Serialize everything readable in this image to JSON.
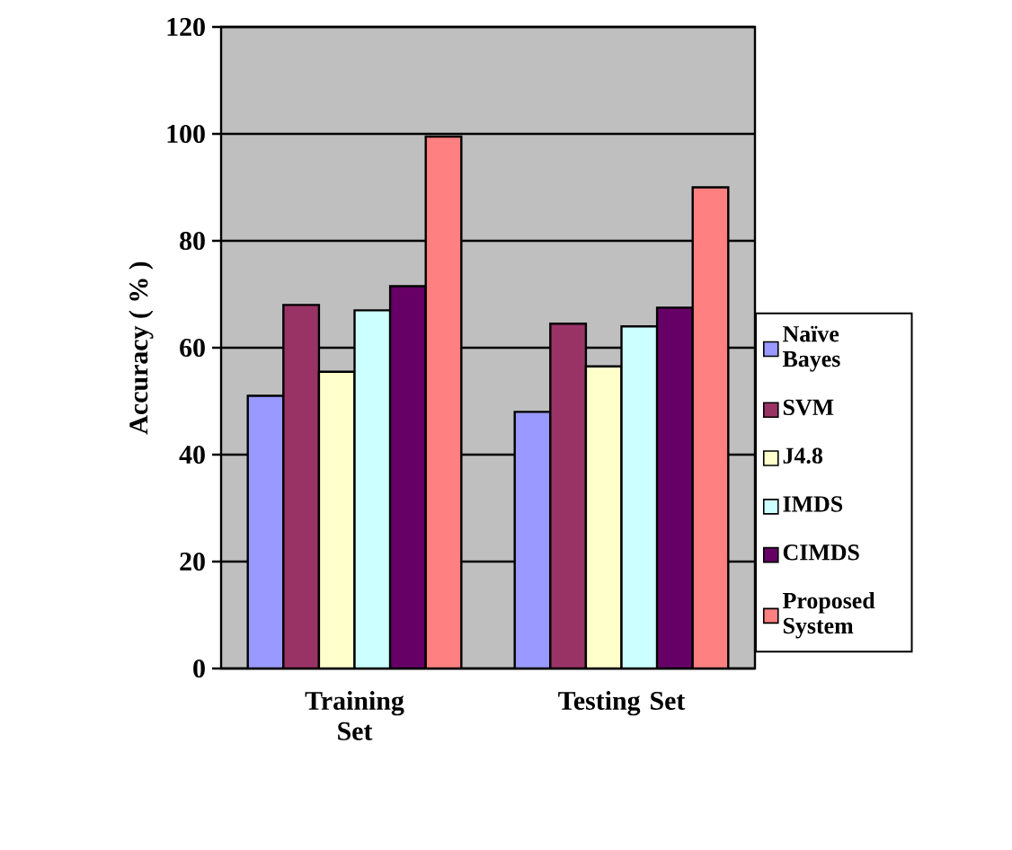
{
  "chart_data": {
    "type": "bar",
    "ylabel": "Accuracy ( % )",
    "categories": [
      "Training Set",
      "Testing Set"
    ],
    "series": [
      {
        "name": "Naïve Bayes",
        "color": "#9999ff",
        "values": [
          51,
          48
        ]
      },
      {
        "name": "SVM",
        "color": "#993366",
        "values": [
          68,
          64.5
        ]
      },
      {
        "name": "J4.8",
        "color": "#ffffcc",
        "values": [
          55.5,
          56.5
        ]
      },
      {
        "name": "IMDS",
        "color": "#ccffff",
        "values": [
          67,
          64
        ]
      },
      {
        "name": "CIMDS",
        "color": "#660066",
        "values": [
          71.5,
          67.5
        ]
      },
      {
        "name": "Proposed System",
        "color": "#ff8080",
        "values": [
          99.5,
          90
        ]
      }
    ],
    "ylim": [
      0,
      120
    ],
    "yticks": [
      0,
      20,
      40,
      60,
      80,
      100,
      120
    ],
    "grid": "y",
    "legend": "right"
  }
}
